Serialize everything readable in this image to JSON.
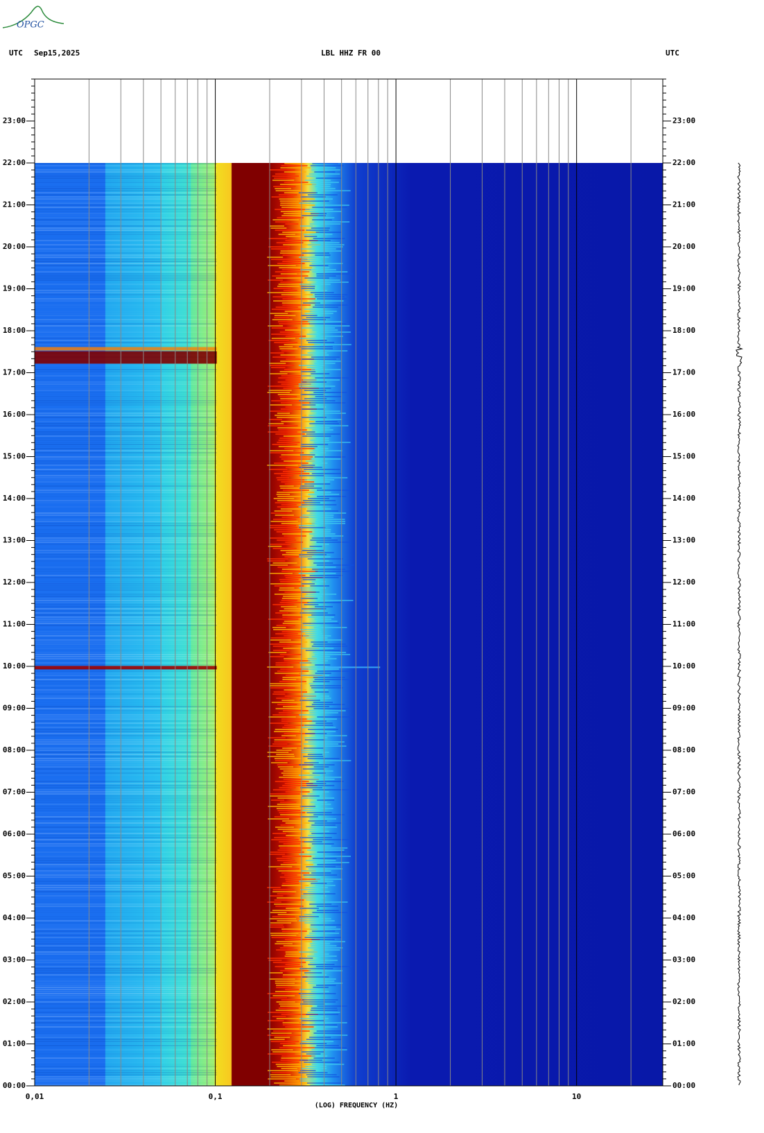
{
  "chart_data": {
    "type": "spectrogram",
    "logo": "OPGC",
    "left_zone_label": "UTC",
    "date": "Sep15,2025",
    "title": "LBL HHZ FR 00",
    "right_zone_label": "UTC",
    "x_label": "(LOG) FREQUENCY (HZ)",
    "log_x": true,
    "grid": true,
    "xlim": [
      0.01,
      30
    ],
    "xticks": [
      {
        "value": 0.01,
        "label": "0,01"
      },
      {
        "value": 0.1,
        "label": "0,1"
      },
      1,
      10
    ],
    "ylim": [
      0,
      24
    ],
    "yticks": [
      {
        "value": 0,
        "label": "00:00"
      },
      {
        "value": 1,
        "label": "01:00"
      },
      {
        "value": 2,
        "label": "02:00"
      },
      {
        "value": 3,
        "label": "03:00"
      },
      {
        "value": 4,
        "label": "04:00"
      },
      {
        "value": 5,
        "label": "05:00"
      },
      {
        "value": 6,
        "label": "06:00"
      },
      {
        "value": 7,
        "label": "07:00"
      },
      {
        "value": 8,
        "label": "08:00"
      },
      {
        "value": 9,
        "label": "09:00"
      },
      {
        "value": 10,
        "label": "10:00"
      },
      {
        "value": 11,
        "label": "11:00"
      },
      {
        "value": 12,
        "label": "12:00"
      },
      {
        "value": 13,
        "label": "13:00"
      },
      {
        "value": 14,
        "label": "14:00"
      },
      {
        "value": 15,
        "label": "15:00"
      },
      {
        "value": 16,
        "label": "16:00"
      },
      {
        "value": 17,
        "label": "17:00"
      },
      {
        "value": 18,
        "label": "18:00"
      },
      {
        "value": 19,
        "label": "19:00"
      },
      {
        "value": 20,
        "label": "20:00"
      },
      {
        "value": 21,
        "label": "21:00"
      },
      {
        "value": 22,
        "label": "22:00"
      },
      {
        "value": 23,
        "label": "23:00"
      }
    ],
    "data_end": 22
  }
}
